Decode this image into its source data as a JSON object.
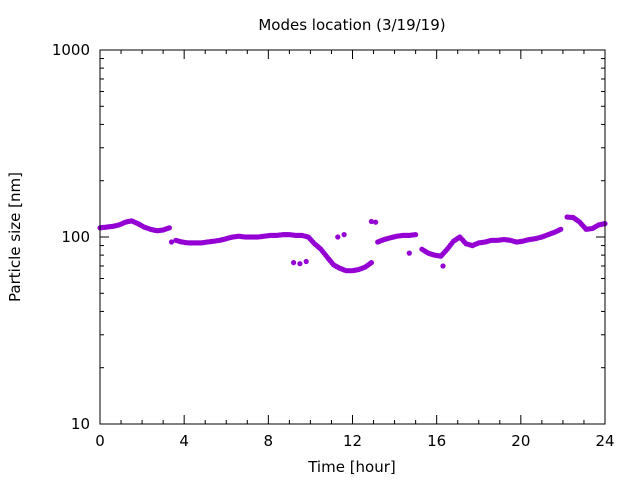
{
  "chart_data": {
    "type": "scatter",
    "title": "Modes location (3/19/19)",
    "xlabel": "Time [hour]",
    "ylabel": "Particle size [nm]",
    "xlim": [
      0,
      24
    ],
    "ylim": [
      10,
      1000
    ],
    "yscale": "log",
    "grid": false,
    "legend": "none",
    "marker_color": "#9400d3",
    "x_ticks": [
      0,
      4,
      8,
      12,
      16,
      20,
      24
    ],
    "x_tick_labels": [
      "0",
      "4",
      "8",
      "12",
      "16",
      "20",
      "24"
    ],
    "y_ticks": [
      10,
      100,
      1000
    ],
    "y_tick_labels": [
      "10",
      "100",
      "1000"
    ],
    "series": [
      {
        "x": [
          0,
          0.3,
          0.6,
          0.9,
          1.2,
          1.5,
          1.8,
          2.1,
          2.4,
          2.7,
          3.0,
          3.3,
          3.6,
          3.9,
          4.2,
          4.5,
          4.8,
          5.1,
          5.4,
          5.7,
          6.0,
          6.3,
          6.6,
          6.9,
          7.2,
          7.5,
          7.8,
          8.1,
          8.4,
          8.7,
          9.0,
          9.3,
          9.6,
          9.9,
          10.2,
          10.5,
          10.8,
          11.1,
          11.4,
          11.7,
          12.0,
          12.3,
          12.6,
          12.9,
          13.2,
          13.5,
          13.8,
          14.1,
          14.4,
          14.7,
          15.0,
          15.3,
          15.6,
          15.9,
          16.2,
          16.5,
          16.8,
          17.1,
          17.4,
          17.7,
          18.0,
          18.3,
          18.6,
          18.9,
          19.2,
          19.5,
          19.8,
          20.1,
          20.4,
          20.7,
          21.0,
          21.3,
          21.6,
          21.9,
          22.2,
          22.5,
          22.8,
          23.1,
          23.4,
          23.7,
          24.0,
          3.4,
          9.2,
          9.5,
          9.8,
          11.3,
          11.6,
          12.9,
          13.1,
          14.7,
          16.3
        ],
        "y": [
          112,
          113,
          114,
          116,
          120,
          122,
          118,
          113,
          110,
          108,
          109,
          112,
          96,
          94,
          93,
          93,
          93,
          94,
          95,
          96,
          98,
          100,
          101,
          100,
          100,
          100,
          101,
          102,
          102,
          103,
          103,
          102,
          102,
          100,
          92,
          86,
          78,
          71,
          68,
          66,
          66,
          67,
          69,
          73,
          94,
          97,
          99,
          101,
          102,
          102,
          103,
          86,
          82,
          80,
          79,
          86,
          95,
          100,
          92,
          90,
          93,
          94,
          96,
          96,
          97,
          96,
          94,
          95,
          97,
          98,
          100,
          103,
          106,
          110,
          128,
          127,
          120,
          110,
          111,
          116,
          118,
          94,
          73,
          72,
          74,
          100,
          103,
          121,
          120,
          82,
          70
        ]
      }
    ]
  }
}
